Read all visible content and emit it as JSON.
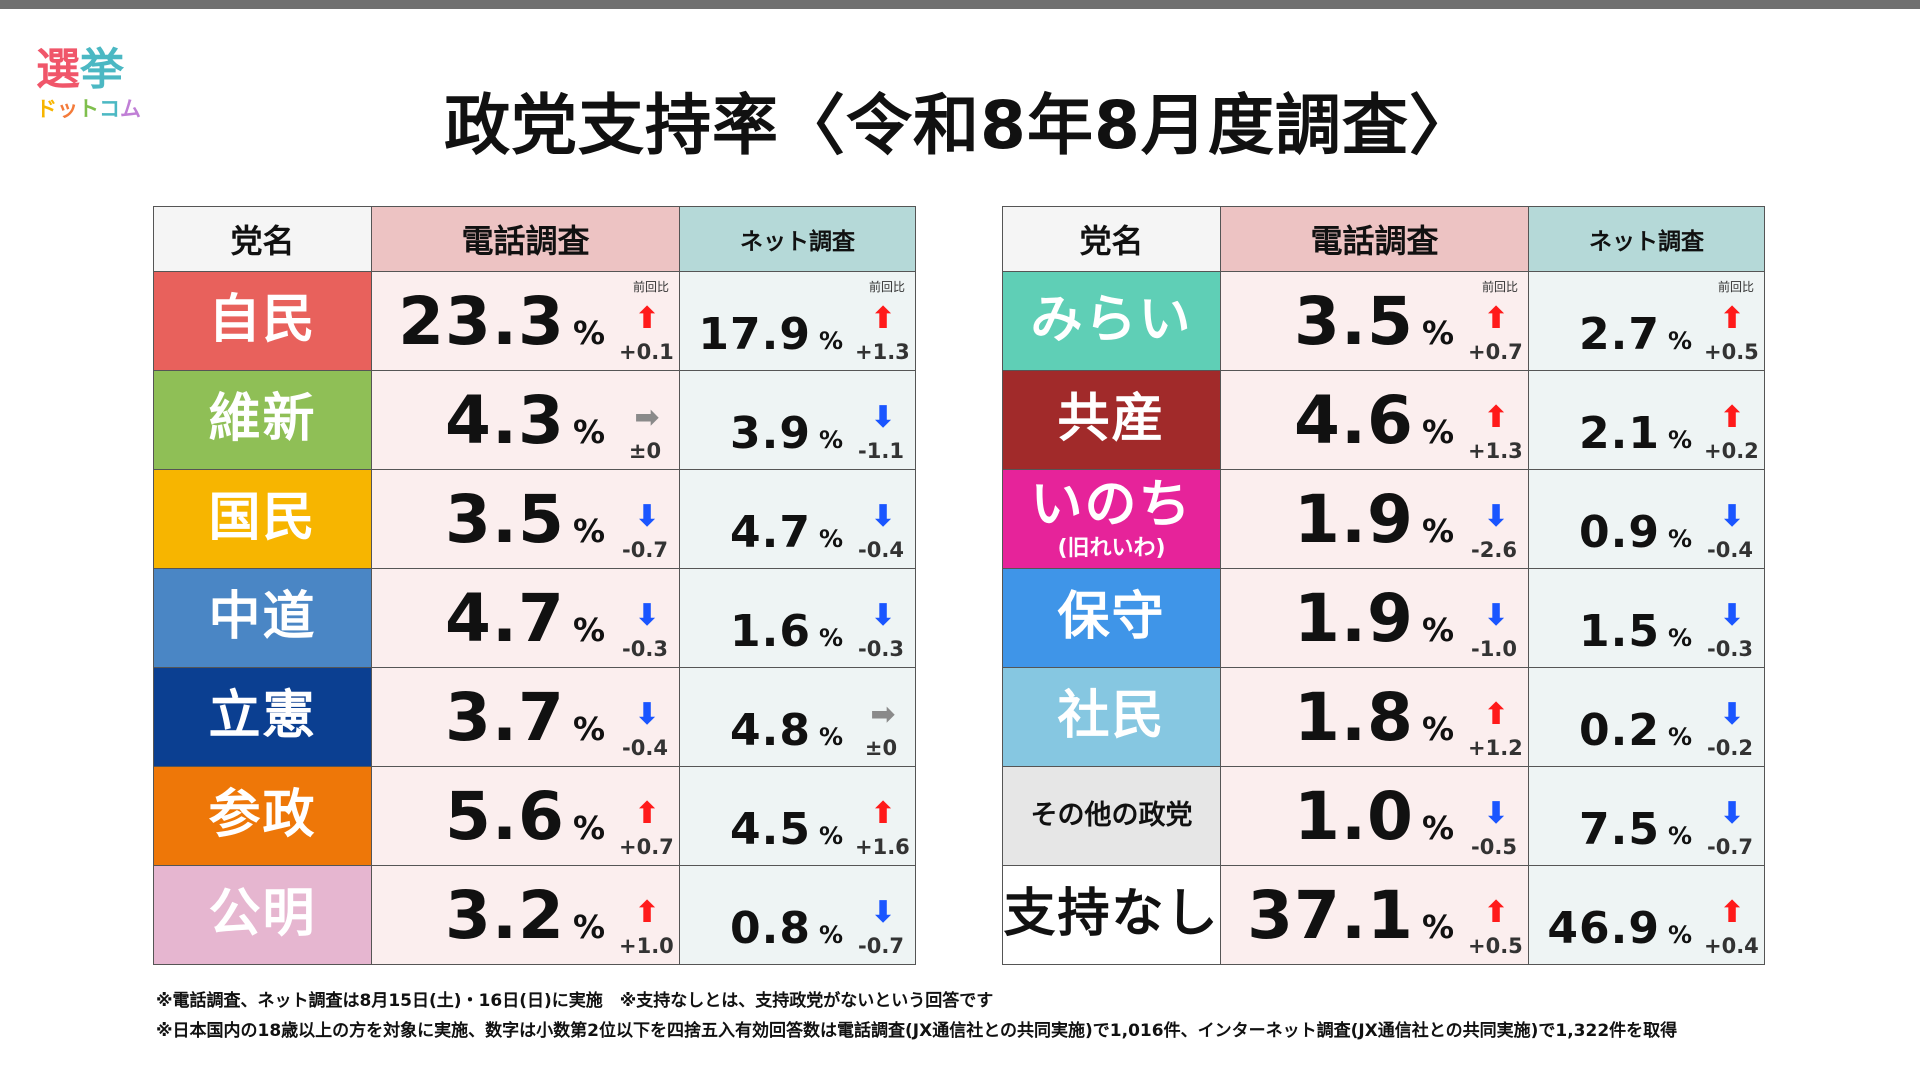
{
  "logo": {
    "chars_top": [
      "選",
      "挙"
    ],
    "chars_bottom": [
      "ド",
      "ッ",
      "ト",
      "コ",
      "ム"
    ],
    "colors_top": [
      "#f0566a",
      "#4bb8c3"
    ],
    "colors_bottom": [
      "#f7b500",
      "#f47b3a",
      "#7fbf4d",
      "#4bb8c3",
      "#c07fd6"
    ]
  },
  "title": "政党支持率〈令和8年8月度調査〉",
  "headers": {
    "name": "党名",
    "phone": "電話調査",
    "net": "ネット調査",
    "prev": "前回比",
    "pct": "%"
  },
  "colors": {
    "up": "#ff1a1a",
    "down": "#1a55ff",
    "flat": "#8a8a8a"
  },
  "left_table": [
    {
      "party": "自民",
      "sub": "",
      "color": "#e8615c",
      "text_color": "#ffffff",
      "phone": "23.3",
      "phone_trend": "up",
      "phone_delta": "+0.1",
      "net": "17.9",
      "net_trend": "up",
      "net_delta": "+1.3"
    },
    {
      "party": "維新",
      "sub": "",
      "color": "#8fbf56",
      "text_color": "#ffffff",
      "phone": "4.3",
      "phone_trend": "flat",
      "phone_delta": "±0",
      "net": "3.9",
      "net_trend": "down",
      "net_delta": "-1.1"
    },
    {
      "party": "国民",
      "sub": "",
      "color": "#f7b500",
      "text_color": "#ffffff",
      "phone": "3.5",
      "phone_trend": "down",
      "phone_delta": "-0.7",
      "net": "4.7",
      "net_trend": "down",
      "net_delta": "-0.4"
    },
    {
      "party": "中道",
      "sub": "",
      "color": "#4a86c5",
      "text_color": "#ffffff",
      "phone": "4.7",
      "phone_trend": "down",
      "phone_delta": "-0.3",
      "net": "1.6",
      "net_trend": "down",
      "net_delta": "-0.3"
    },
    {
      "party": "立憲",
      "sub": "",
      "color": "#0b3f91",
      "text_color": "#ffffff",
      "phone": "3.7",
      "phone_trend": "down",
      "phone_delta": "-0.4",
      "net": "4.8",
      "net_trend": "flat",
      "net_delta": "±0"
    },
    {
      "party": "参政",
      "sub": "",
      "color": "#ee7708",
      "text_color": "#ffffff",
      "phone": "5.6",
      "phone_trend": "up",
      "phone_delta": "+0.7",
      "net": "4.5",
      "net_trend": "up",
      "net_delta": "+1.6"
    },
    {
      "party": "公明",
      "sub": "",
      "color": "#e6b6d0",
      "text_color": "#ffffff",
      "phone": "3.2",
      "phone_trend": "up",
      "phone_delta": "+1.0",
      "net": "0.8",
      "net_trend": "down",
      "net_delta": "-0.7"
    }
  ],
  "right_table": [
    {
      "party": "みらい",
      "sub": "",
      "color": "#5fcfb6",
      "text_color": "#ffffff",
      "phone": "3.5",
      "phone_trend": "up",
      "phone_delta": "+0.7",
      "net": "2.7",
      "net_trend": "up",
      "net_delta": "+0.5"
    },
    {
      "party": "共産",
      "sub": "",
      "color": "#a12a2a",
      "text_color": "#ffffff",
      "phone": "4.6",
      "phone_trend": "up",
      "phone_delta": "+1.3",
      "net": "2.1",
      "net_trend": "up",
      "net_delta": "+0.2"
    },
    {
      "party": "いのち",
      "sub": "(旧れいわ)",
      "color": "#e6239a",
      "text_color": "#ffffff",
      "phone": "1.9",
      "phone_trend": "down",
      "phone_delta": "-2.6",
      "net": "0.9",
      "net_trend": "down",
      "net_delta": "-0.4"
    },
    {
      "party": "保守",
      "sub": "",
      "color": "#3f95e8",
      "text_color": "#ffffff",
      "phone": "1.9",
      "phone_trend": "down",
      "phone_delta": "-1.0",
      "net": "1.5",
      "net_trend": "down",
      "net_delta": "-0.3"
    },
    {
      "party": "社民",
      "sub": "",
      "color": "#86c7e1",
      "text_color": "#ffffff",
      "phone": "1.8",
      "phone_trend": "up",
      "phone_delta": "+1.2",
      "net": "0.2",
      "net_trend": "down",
      "net_delta": "-0.2"
    },
    {
      "party": "その他の政党",
      "sub": "",
      "color": "#e6e6e6",
      "text_color": "#111111",
      "phone": "1.0",
      "phone_trend": "down",
      "phone_delta": "-0.5",
      "net": "7.5",
      "net_trend": "down",
      "net_delta": "-0.7"
    },
    {
      "party": "支持なし",
      "sub": "",
      "color": "#ffffff",
      "text_color": "#111111",
      "phone": "37.1",
      "phone_trend": "up",
      "phone_delta": "+0.5",
      "net": "46.9",
      "net_trend": "up",
      "net_delta": "+0.4"
    }
  ],
  "footnotes": [
    "※電話調査、ネット調査は8月15日(土)・16日(日)に実施　※支持なしとは、支持政党がないという回答です",
    "※日本国内の18歳以上の方を対象に実施、数字は小数第2位以下を四捨五入有効回答数は電話調査(JX通信社との共同実施)で1,016件、インターネット調査(JX通信社との共同実施)で1,322件を取得"
  ]
}
